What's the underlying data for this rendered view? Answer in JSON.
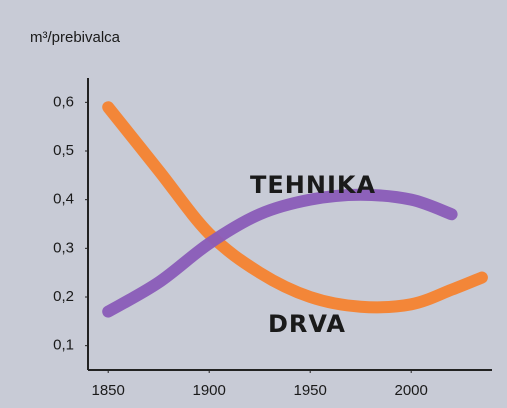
{
  "chart_data": {
    "type": "line",
    "y_label": "m³/prebivalca",
    "x": [
      1850,
      1875,
      1900,
      1925,
      1950,
      1975,
      2000,
      2020,
      2035
    ],
    "series": [
      {
        "name": "DRVA",
        "color": "#f5822f",
        "values": [
          0.59,
          0.46,
          0.33,
          0.25,
          0.2,
          0.18,
          0.185,
          0.215,
          0.24
        ]
      },
      {
        "name": "TEHNIKA",
        "color": "#8a5bb8",
        "values": [
          0.17,
          0.23,
          0.31,
          0.37,
          0.4,
          0.41,
          0.4,
          0.37,
          null
        ]
      }
    ],
    "xlim": [
      1840,
      2040
    ],
    "ylim": [
      0.05,
      0.65
    ],
    "xticks": [
      1850,
      1900,
      1950,
      2000
    ],
    "yticks": [
      {
        "value": 0.1,
        "label": "0,1"
      },
      {
        "value": 0.2,
        "label": "0,2"
      },
      {
        "value": 0.3,
        "label": "0,3"
      },
      {
        "value": 0.4,
        "label": "0,4"
      },
      {
        "value": 0.5,
        "label": "0,5"
      },
      {
        "value": 0.6,
        "label": "0,6"
      }
    ]
  }
}
